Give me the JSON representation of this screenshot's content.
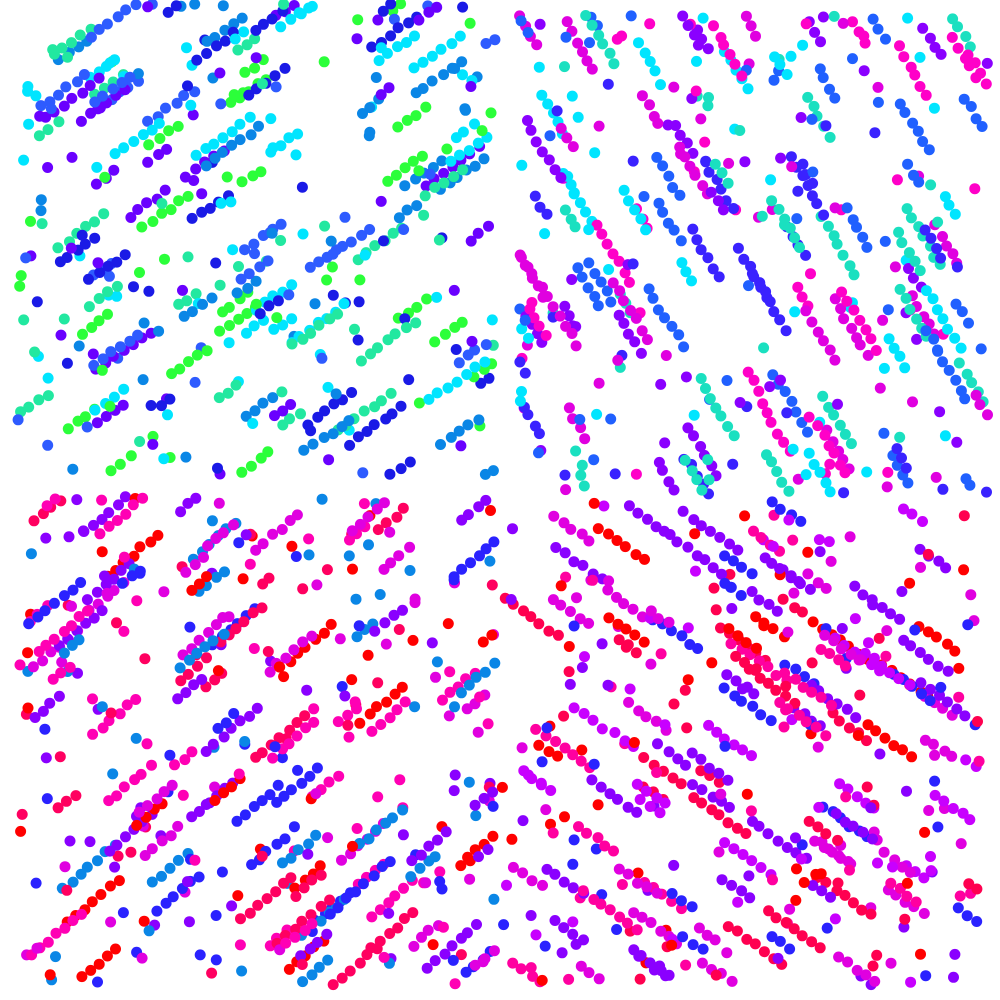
{
  "background": "#ffffff",
  "panels": [
    {
      "id": "top-left",
      "palette": [
        "#1a1ae6",
        "#2e5bff",
        "#00e5ff",
        "#22e8a0",
        "#2bff3a",
        "#6a00ff",
        "#0a86e6"
      ],
      "dot_count": 650,
      "streak_angle_deg": -35
    },
    {
      "id": "top-right",
      "palette": [
        "#e000e0",
        "#8a00ff",
        "#3a22ff",
        "#00e5ff",
        "#1ae0c0",
        "#2060ff",
        "#ff00c8"
      ],
      "dot_count": 650,
      "streak_angle_deg": -120
    },
    {
      "id": "bottom-left",
      "palette": [
        "#ff0000",
        "#ff0060",
        "#e000e0",
        "#8a00ff",
        "#2a22ff",
        "#0a86e6",
        "#ff00b4"
      ],
      "dot_count": 700,
      "streak_angle_deg": -40
    },
    {
      "id": "bottom-right",
      "palette": [
        "#ff0000",
        "#ff0050",
        "#e000e0",
        "#8a00ff",
        "#2a22ff",
        "#c800ff",
        "#ff00a0"
      ],
      "dot_count": 720,
      "streak_angle_deg": 35
    }
  ]
}
